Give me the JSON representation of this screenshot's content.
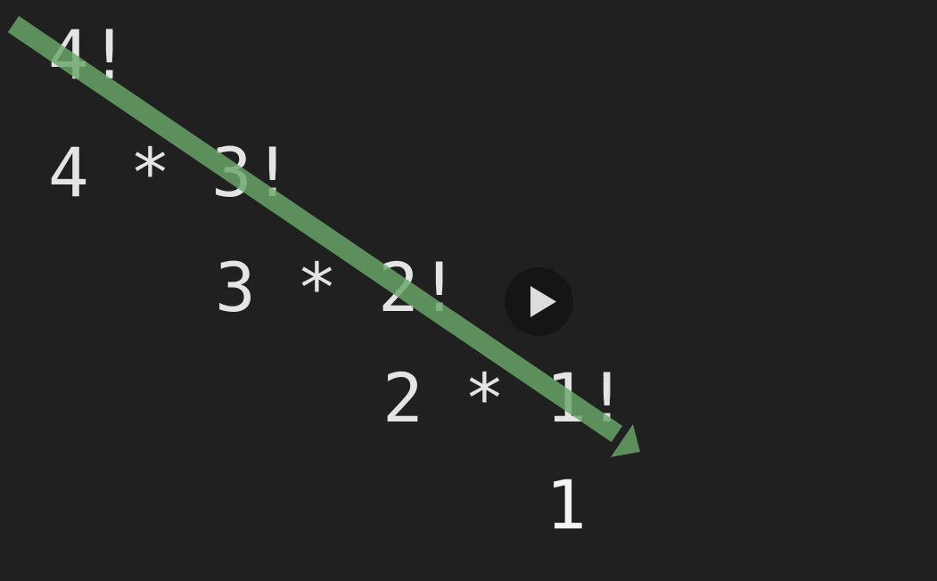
{
  "expressions": {
    "line1": "4!",
    "line2": "4 * 3!",
    "line3": "3 * 2!",
    "line4": "2 * 1!",
    "line5": "1"
  },
  "colors": {
    "background": "#202020",
    "text": "#e4e4e4",
    "arrow": "#6aa86a",
    "play_button_bg": "#141414",
    "play_icon": "#dddddd"
  },
  "icons": {
    "play": "play-icon",
    "arrow": "arrow-icon"
  }
}
